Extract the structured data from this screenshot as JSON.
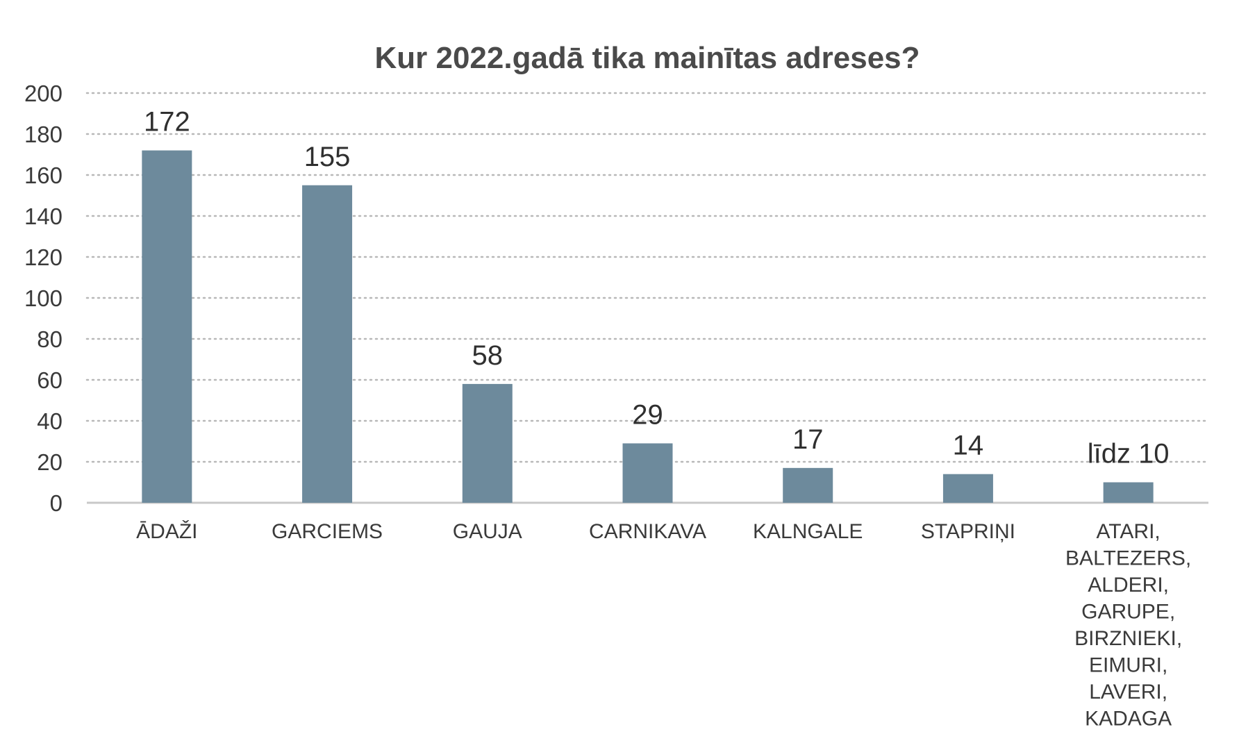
{
  "chart_data": {
    "type": "bar",
    "title": "Kur 2022.gadā tika mainītas adreses?",
    "xlabel": "",
    "ylabel": "",
    "ylim": [
      0,
      200
    ],
    "yticks": [
      "0",
      "20",
      "40",
      "60",
      "80",
      "100",
      "120",
      "140",
      "160",
      "180",
      "200"
    ],
    "grid": true,
    "categories": [
      [
        "ĀDAŽI"
      ],
      [
        "GARCIEMS"
      ],
      [
        "GAUJA"
      ],
      [
        "CARNIKAVA"
      ],
      [
        "KALNGALE"
      ],
      [
        "STAPRIŅI"
      ],
      [
        "ATARI,",
        "BALTEZERS,",
        "ALDERI,",
        "GARUPE,",
        "BIRZNIEKI,",
        "EIMURI,",
        "LAVERI,",
        "KADAGA"
      ]
    ],
    "values": [
      172,
      155,
      58,
      29,
      17,
      14,
      10
    ],
    "data_labels": [
      "172",
      "155",
      "58",
      "29",
      "17",
      "14",
      "līdz 10"
    ],
    "bar_color": "#6d8a9c"
  }
}
